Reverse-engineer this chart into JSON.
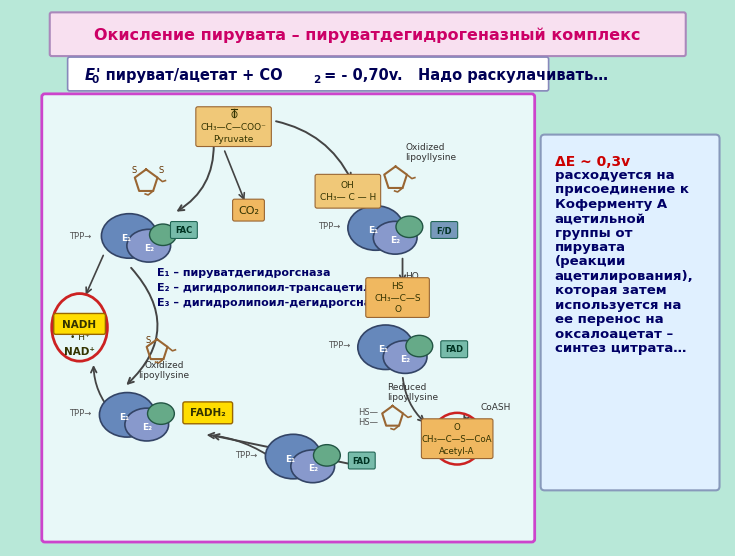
{
  "bg_color": "#b8e8d8",
  "title": "Окисление пирувата – пируватдегидрогеназный комплекс",
  "title_color": "#cc0066",
  "title_bg": "#f8e0f0",
  "title_border": "#aa88bb",
  "subtitle_bg": "#ffffff",
  "subtitle_border": "#8888bb",
  "subtitle_color": "#000055",
  "diagram_bg": "#e8f8f8",
  "diagram_border": "#cc44cc",
  "right_box_bg": "#e0f0ff",
  "right_box_border": "#8899bb",
  "right_title": "ΔE ~ 0,3v",
  "right_title_color": "#cc0000",
  "right_text_color": "#000066",
  "legend_e1": "E₁ – пируватдегидрогсназа",
  "legend_e2": "E₂ – дигидролипоил-трансацетилаза",
  "legend_e3": "E₃ – дигидролипоил-дегидрогсназа",
  "legend_color": "#000066",
  "enzyme_blue": "#6688bb",
  "enzyme_blue2": "#8899cc",
  "enzyme_green": "#66aa88",
  "co2_color": "#f0b860",
  "pyruvate_color": "#f0c878",
  "nadh_color": "#ffdd00",
  "fadh2_color": "#ffdd00",
  "fad_color": "#88bbaa",
  "lipoic_color": "#996633",
  "red_circle": "#cc2222",
  "acetyl_color": "#f0b860",
  "right_lines": [
    "ΔE ~ 0,3v",
    "расходуется на",
    "присоединение к",
    "Коферменту А",
    "ацетильной",
    "группы от",
    "пирувата",
    "(реакции",
    "ацетилирования),",
    "которая затем",
    "используется на",
    "ее перенос на",
    "оксалоацетат –",
    "синтез цитрата…"
  ]
}
